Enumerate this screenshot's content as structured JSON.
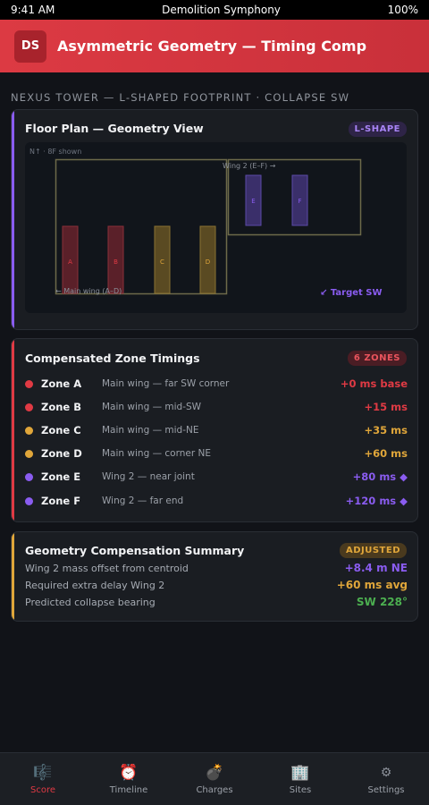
{
  "status_bar": {
    "time": "9:41 AM",
    "app_name": "Demolition Symphony",
    "battery": "100%"
  },
  "header": {
    "logo": "DS",
    "title": "Asymmetric Geometry — Timing Comp"
  },
  "site_subtitle": "NEXUS TOWER — L-SHAPED FOOTPRINT · COLLAPSE SW",
  "floor_plan": {
    "title": "Floor Plan — Geometry View",
    "badge": "L-SHAPE",
    "note": "N↑ · 8F shown",
    "wing2_label": "Wing 2 (E–F) →",
    "main_wing_label": "← Main wing (A–D)",
    "target_label": "↙ Target SW",
    "columns": [
      "A",
      "B",
      "C",
      "D",
      "E",
      "F"
    ],
    "colors": {
      "red": "#e03a44",
      "amber": "#e0a63a",
      "violet": "#8a5cf0",
      "outline": "#6d6a4a"
    }
  },
  "timings": {
    "title": "Compensated Zone Timings",
    "badge": "6 ZONES",
    "zones": [
      {
        "name": "Zone A",
        "desc": "Main wing — far SW corner",
        "delay": "+0 ms base",
        "color": "#e03a44"
      },
      {
        "name": "Zone B",
        "desc": "Main wing — mid-SW",
        "delay": "+15 ms",
        "color": "#e03a44"
      },
      {
        "name": "Zone C",
        "desc": "Main wing — mid-NE",
        "delay": "+35 ms",
        "color": "#e0a63a"
      },
      {
        "name": "Zone D",
        "desc": "Main wing — corner NE",
        "delay": "+60 ms",
        "color": "#e0a63a"
      },
      {
        "name": "Zone E",
        "desc": "Wing 2 — near joint",
        "delay": "+80 ms ◆",
        "color": "#8a5cf0"
      },
      {
        "name": "Zone F",
        "desc": "Wing 2 — far end",
        "delay": "+120 ms ◆",
        "color": "#8a5cf0"
      }
    ]
  },
  "summary": {
    "title": "Geometry Compensation Summary",
    "badge": "ADJUSTED",
    "rows": [
      {
        "label": "Wing 2 mass offset from centroid",
        "value": "+8.4 m NE",
        "color": "#8a5cf0"
      },
      {
        "label": "Required extra delay Wing 2",
        "value": "+60 ms avg",
        "color": "#e0a63a"
      },
      {
        "label": "Predicted collapse bearing",
        "value": "SW 228°",
        "color": "#4caf50"
      }
    ]
  },
  "tabs": [
    {
      "label": "Score",
      "icon": "🎼",
      "icon_name": "score-icon"
    },
    {
      "label": "Timeline",
      "icon": "⏰",
      "icon_name": "alarm-clock-icon"
    },
    {
      "label": "Charges",
      "icon": "💣",
      "icon_name": "bomb-icon"
    },
    {
      "label": "Sites",
      "icon": "🏢",
      "icon_name": "building-icon"
    },
    {
      "label": "Settings",
      "icon": "⚙",
      "icon_name": "gear-icon"
    }
  ]
}
